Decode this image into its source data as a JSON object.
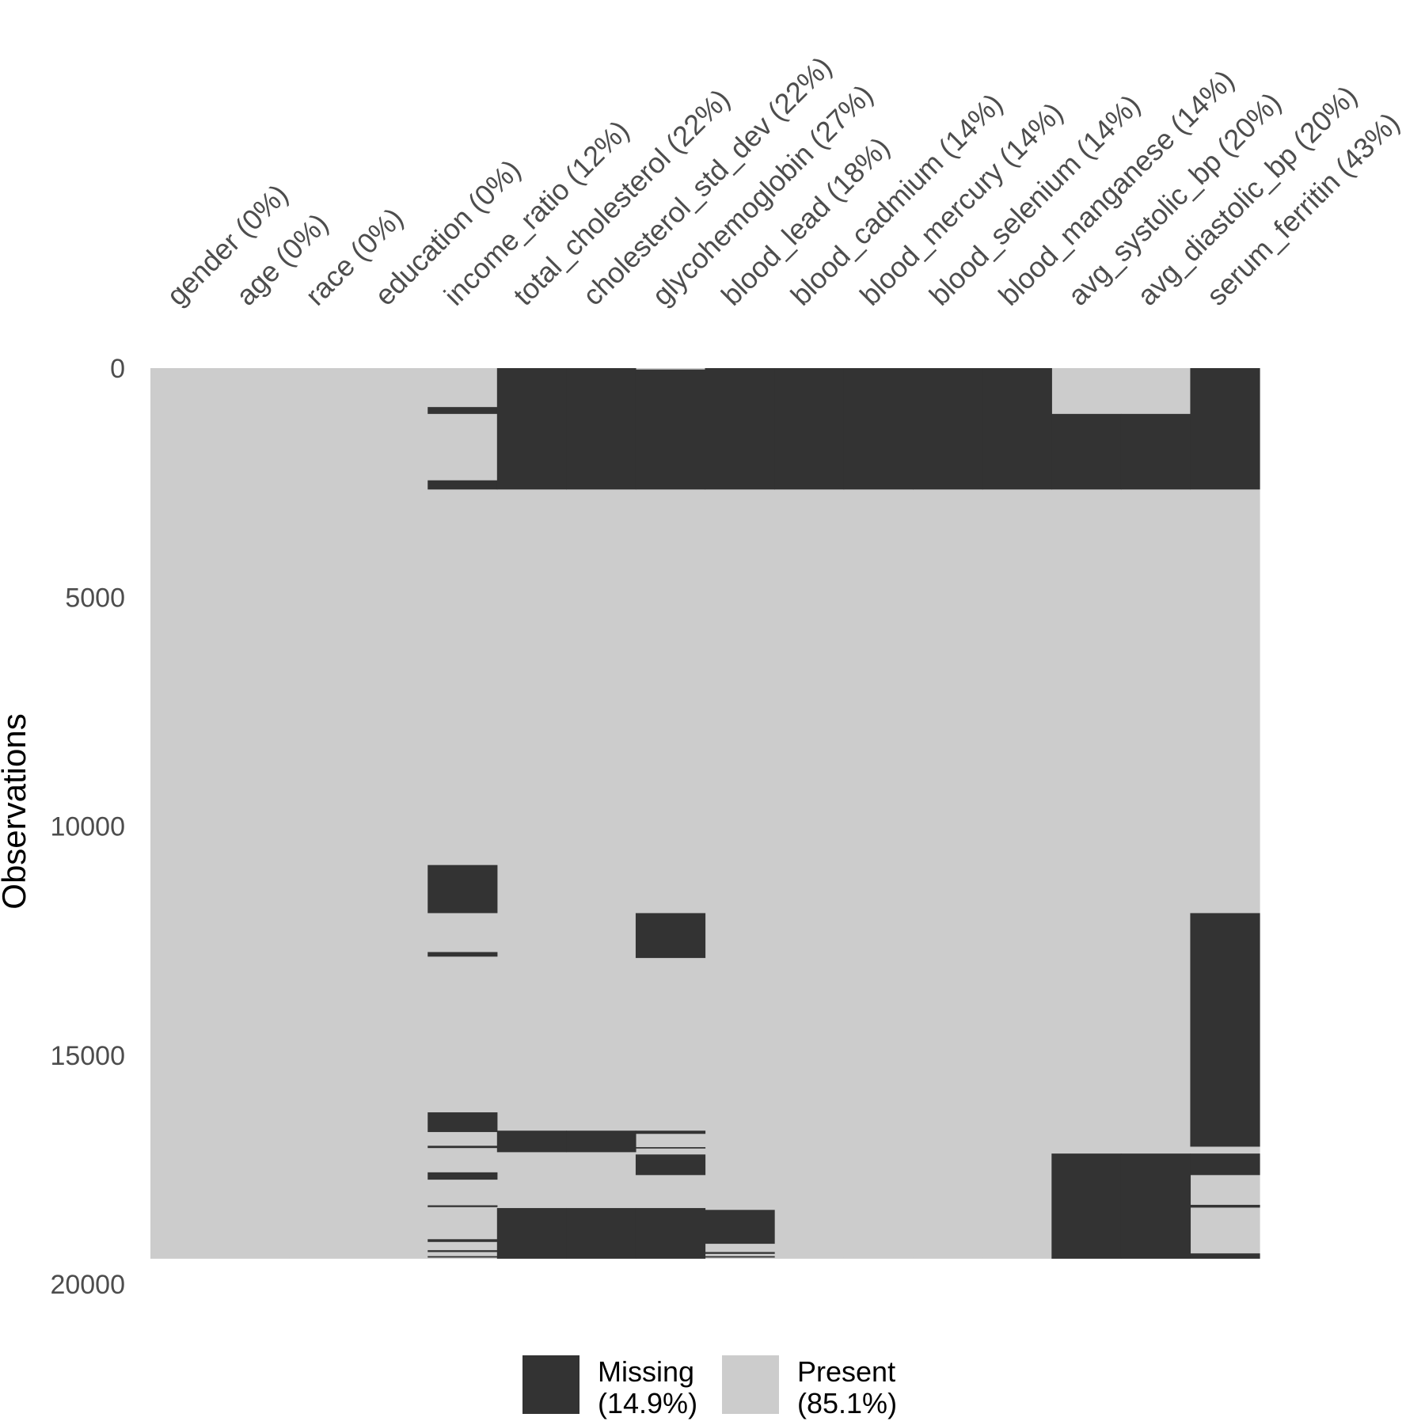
{
  "chart_data": {
    "type": "heatmap",
    "title": "",
    "ylabel": "Observations",
    "xlabel": "",
    "n_obs": 19446,
    "ylim": [
      0,
      20000
    ],
    "y_ticks": [
      0,
      5000,
      10000,
      15000,
      20000
    ],
    "columns": [
      "gender (0%)",
      "age (0%)",
      "race (0%)",
      "education (0%)",
      "income_ratio (12%)",
      "total_cholesterol (22%)",
      "cholesterol_std_dev (22%)",
      "glycohemoglobin (27%)",
      "blood_lead (18%)",
      "blood_cadmium (14%)",
      "blood_mercury (14%)",
      "blood_selenium (14%)",
      "blood_manganese (14%)",
      "avg_systolic_bp (20%)",
      "avg_diastolic_bp (20%)",
      "serum_ferritin (43%)"
    ],
    "missing_blocks": [
      {
        "column": 4,
        "start": 850,
        "end": 1000
      },
      {
        "column": 4,
        "start": 2450,
        "end": 2650
      },
      {
        "column": 4,
        "start": 10850,
        "end": 11900
      },
      {
        "column": 4,
        "start": 12750,
        "end": 12850
      },
      {
        "column": 4,
        "start": 16250,
        "end": 16680
      },
      {
        "column": 4,
        "start": 16980,
        "end": 17030
      },
      {
        "column": 4,
        "start": 17560,
        "end": 17720
      },
      {
        "column": 4,
        "start": 18280,
        "end": 18320
      },
      {
        "column": 4,
        "start": 19020,
        "end": 19080
      },
      {
        "column": 4,
        "start": 19260,
        "end": 19300
      },
      {
        "column": 4,
        "start": 19390,
        "end": 19420
      },
      {
        "column": 5,
        "start": 0,
        "end": 2650
      },
      {
        "column": 6,
        "start": 0,
        "end": 2650
      },
      {
        "column": 5,
        "start": 16650,
        "end": 17120
      },
      {
        "column": 6,
        "start": 16650,
        "end": 17120
      },
      {
        "column": 5,
        "start": 18340,
        "end": 19446
      },
      {
        "column": 6,
        "start": 18340,
        "end": 19446
      },
      {
        "column": 7,
        "start": 30,
        "end": 2650
      },
      {
        "column": 7,
        "start": 11900,
        "end": 12880
      },
      {
        "column": 7,
        "start": 16650,
        "end": 16720
      },
      {
        "column": 7,
        "start": 17010,
        "end": 17040
      },
      {
        "column": 7,
        "start": 17170,
        "end": 17620
      },
      {
        "column": 7,
        "start": 18340,
        "end": 19446
      },
      {
        "column": 8,
        "start": 0,
        "end": 2650
      },
      {
        "column": 8,
        "start": 18380,
        "end": 19120
      },
      {
        "column": 8,
        "start": 19300,
        "end": 19340
      },
      {
        "column": 8,
        "start": 19390,
        "end": 19420
      },
      {
        "column": 9,
        "start": 0,
        "end": 2650
      },
      {
        "column": 10,
        "start": 0,
        "end": 2650
      },
      {
        "column": 11,
        "start": 0,
        "end": 2650
      },
      {
        "column": 12,
        "start": 0,
        "end": 2650
      },
      {
        "column": 13,
        "start": 1000,
        "end": 2650
      },
      {
        "column": 14,
        "start": 1000,
        "end": 2650
      },
      {
        "column": 13,
        "start": 17150,
        "end": 19446
      },
      {
        "column": 14,
        "start": 17150,
        "end": 19446
      },
      {
        "column": 15,
        "start": 0,
        "end": 2650
      },
      {
        "column": 15,
        "start": 11900,
        "end": 17000
      },
      {
        "column": 15,
        "start": 17150,
        "end": 17620
      },
      {
        "column": 15,
        "start": 18270,
        "end": 18330
      },
      {
        "column": 15,
        "start": 19330,
        "end": 19446
      }
    ],
    "legend": {
      "position": "bottom",
      "items": [
        {
          "label": "Missing",
          "pct": "(14.9%)",
          "color": "#333333"
        },
        {
          "label": "Present",
          "pct": "(85.1%)",
          "color": "#cccccc"
        }
      ]
    },
    "colors": {
      "missing": "#333333",
      "present": "#cccccc",
      "tick_text": "#4d4d4d"
    },
    "grid": false
  }
}
